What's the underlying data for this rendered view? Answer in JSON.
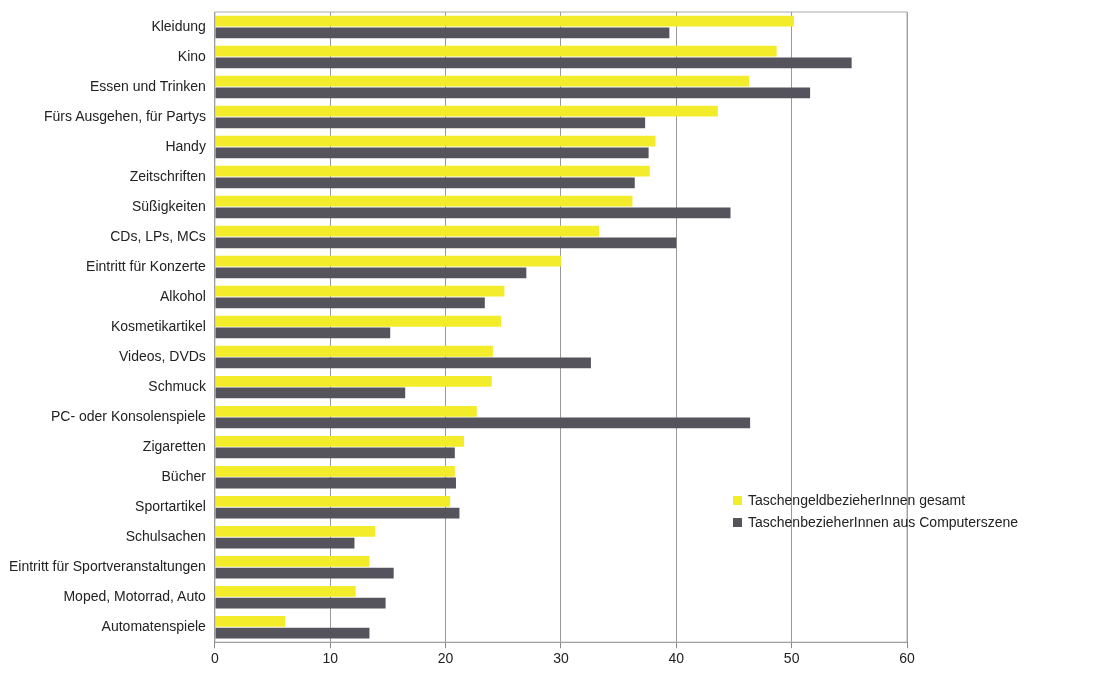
{
  "chart_data": {
    "type": "bar",
    "orientation": "horizontal",
    "categories": [
      "Kleidung",
      "Kino",
      "Essen und Trinken",
      "Fürs Ausgehen, für Partys",
      "Handy",
      "Zeitschriften",
      "Süßigkeiten",
      "CDs, LPs, MCs",
      "Eintritt für Konzerte",
      "Alkohol",
      "Kosmetikartikel",
      "Videos, DVDs",
      "Schmuck",
      "PC- oder Konsolenspiele",
      "Zigaretten",
      "Bücher",
      "Sportartikel",
      "Schulsachen",
      "Eintritt für Sportveranstaltungen",
      "Moped, Motorrad, Auto",
      "Automatenspiele"
    ],
    "series": [
      {
        "name": "TaschengeldbezieherInnen gesamt",
        "color": "#f2ec2a",
        "values": [
          50.2,
          48.7,
          46.3,
          43.6,
          38.2,
          37.7,
          36.2,
          33.3,
          30.0,
          25.1,
          24.8,
          24.1,
          24.0,
          22.7,
          21.6,
          20.8,
          20.4,
          13.9,
          13.4,
          12.2,
          6.1
        ]
      },
      {
        "name": "TaschenbezieherInnen aus Computerszene",
        "color": "#55545c",
        "values": [
          39.4,
          55.2,
          51.6,
          37.3,
          37.6,
          36.4,
          44.7,
          40.0,
          27.0,
          23.4,
          15.2,
          32.6,
          16.5,
          46.4,
          20.8,
          20.9,
          21.2,
          12.1,
          15.5,
          14.8,
          13.4
        ]
      }
    ],
    "xlim": [
      0,
      60
    ],
    "xticks": [
      0,
      10,
      20,
      30,
      40,
      50,
      60
    ],
    "grid": "x",
    "legend": "right"
  }
}
